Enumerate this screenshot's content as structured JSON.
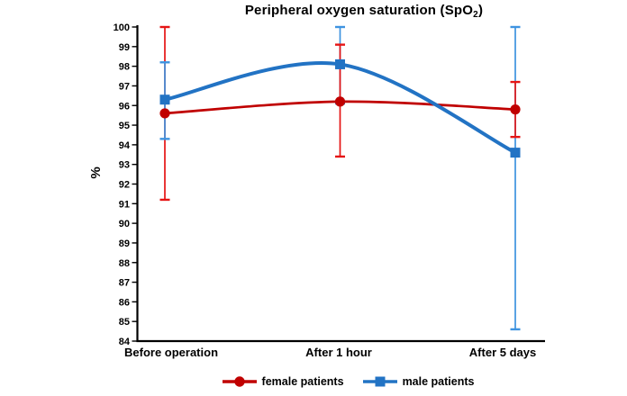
{
  "title": {
    "pre": "Peripheral oxygen saturation (SpO",
    "sub": "2",
    "post": ")"
  },
  "chart_data": {
    "type": "line",
    "title": "Peripheral oxygen saturation (SpO2)",
    "ylabel": "%",
    "xlabel": "",
    "ylim": [
      84,
      100
    ],
    "ytick_step": 1,
    "grid": false,
    "smoothed": true,
    "error_bars": true,
    "legend_position": "bottom",
    "categories": [
      "Before operation",
      "After 1 hour",
      "After 5 days"
    ],
    "series": [
      {
        "name": "female patients",
        "marker": "circle",
        "color": "#C00000",
        "error_color": "#E51414",
        "values": [
          95.6,
          96.2,
          95.8
        ],
        "err_low": [
          91.2,
          93.4,
          94.4
        ],
        "err_high": [
          100.0,
          99.1,
          97.2
        ]
      },
      {
        "name": "male patients",
        "marker": "square",
        "color": "#2273C4",
        "error_color": "#3E93E0",
        "values": [
          96.3,
          98.1,
          93.6
        ],
        "err_low": [
          94.3,
          96.1,
          84.6
        ],
        "err_high": [
          98.2,
          100.0,
          100.0
        ]
      }
    ]
  }
}
